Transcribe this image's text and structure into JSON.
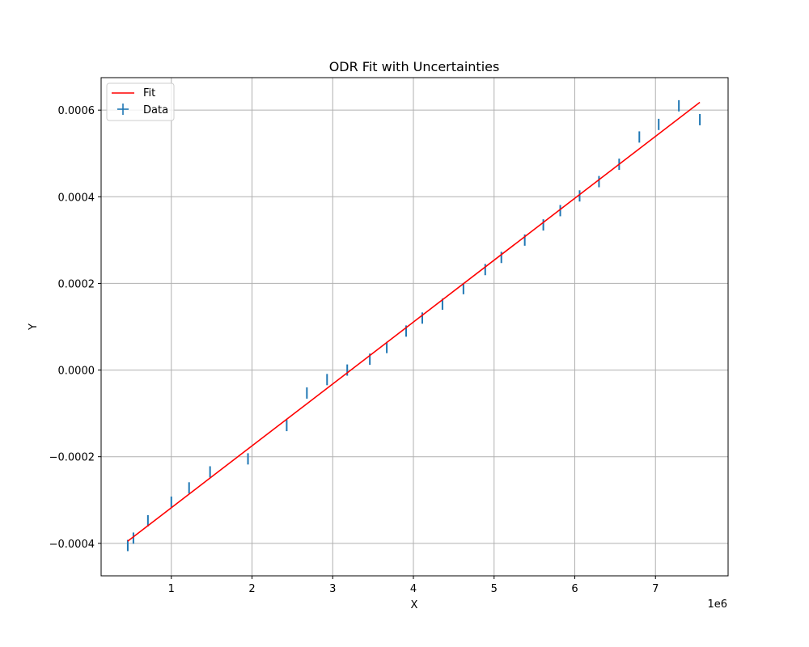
{
  "chart_data": {
    "type": "scatter",
    "title": "ODR Fit with Uncertainties",
    "xlabel": "X",
    "ylabel": "Y",
    "x_offset_label": "1e6",
    "xlim": [
      0.13,
      7.9
    ],
    "ylim": [
      -0.000475,
      0.000675
    ],
    "x_ticks": [
      1,
      2,
      3,
      4,
      5,
      6,
      7
    ],
    "x_tick_labels": [
      "1",
      "2",
      "3",
      "4",
      "5",
      "6",
      "7"
    ],
    "y_ticks": [
      -0.0004,
      -0.0002,
      0.0,
      0.0002,
      0.0004,
      0.0006
    ],
    "y_tick_labels": [
      "−0.0004",
      "−0.0002",
      "0.0000",
      "0.0002",
      "0.0004",
      "0.0006"
    ],
    "grid": true,
    "legend_position": "top-left",
    "series": [
      {
        "name": "Fit",
        "kind": "line",
        "color": "#ff0000",
        "x": [
          0.46,
          7.55
        ],
        "y": [
          -0.000395,
          0.000618
        ]
      },
      {
        "name": "Data",
        "kind": "errorbar",
        "color": "#1f77b4",
        "x": [
          0.46,
          0.53,
          0.71,
          1.0,
          1.22,
          1.48,
          1.95,
          2.43,
          2.68,
          2.93,
          3.18,
          3.46,
          3.67,
          3.91,
          4.11,
          4.36,
          4.62,
          4.89,
          5.09,
          5.38,
          5.61,
          5.82,
          6.06,
          6.3,
          6.55,
          6.8,
          7.04,
          7.29,
          7.55
        ],
        "y": [
          -0.000405,
          -0.000388,
          -0.000348,
          -0.000305,
          -0.000272,
          -0.000235,
          -0.000205,
          -0.000128,
          -5.3e-05,
          -2.2e-05,
          0.0,
          2.5e-05,
          5.2e-05,
          9e-05,
          0.00012,
          0.000152,
          0.000188,
          0.000232,
          0.00026,
          0.0003,
          0.000335,
          0.000368,
          0.000402,
          0.000435,
          0.000475,
          0.000538,
          0.000567,
          0.00061,
          0.000578
        ],
        "yerr": 1.3e-05
      }
    ]
  }
}
